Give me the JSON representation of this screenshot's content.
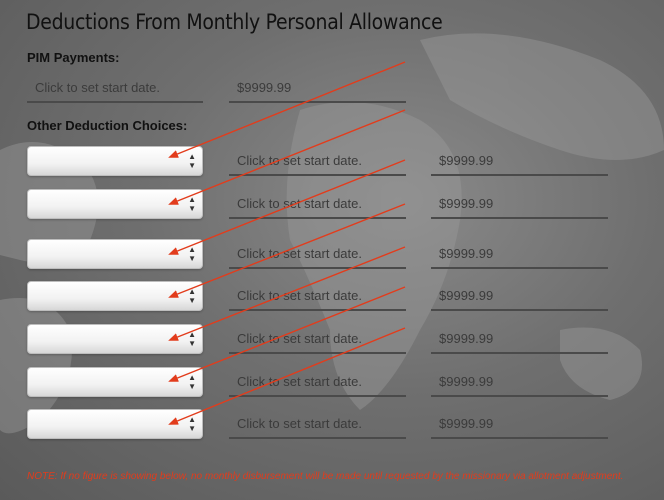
{
  "title": "Deductions From Monthly Personal Allowance",
  "pim_section": {
    "label": "PIM Payments:",
    "date_placeholder": "Click to set start date.",
    "amount": "$9999.99"
  },
  "other_section": {
    "label": "Other Deduction Choices:",
    "rows": [
      {
        "selected": "",
        "date_placeholder": "Click to set start date.",
        "amount": "$9999.99"
      },
      {
        "selected": "",
        "date_placeholder": "Click to set start date.",
        "amount": "$9999.99"
      },
      {
        "selected": "",
        "date_placeholder": "Click to set start date.",
        "amount": "$9999.99"
      },
      {
        "selected": "",
        "date_placeholder": "Click to set start date.",
        "amount": "$9999.99"
      },
      {
        "selected": "",
        "date_placeholder": "Click to set start date.",
        "amount": "$9999.99"
      },
      {
        "selected": "",
        "date_placeholder": "Click to set start date.",
        "amount": "$9999.99"
      },
      {
        "selected": "",
        "date_placeholder": "Click to set start date.",
        "amount": "$9999.99"
      }
    ]
  },
  "note": "NOTE: If no figure is showing below, no monthly disbursement will be made until requested by the missionary via allotment adjustment.",
  "colors": {
    "annotation_arrow": "#e23c1c",
    "field_underline": "#4a4a4a"
  },
  "icons": {
    "select_toggle": "chevron-up-down-icon",
    "annotation": "red-arrow-icon"
  }
}
